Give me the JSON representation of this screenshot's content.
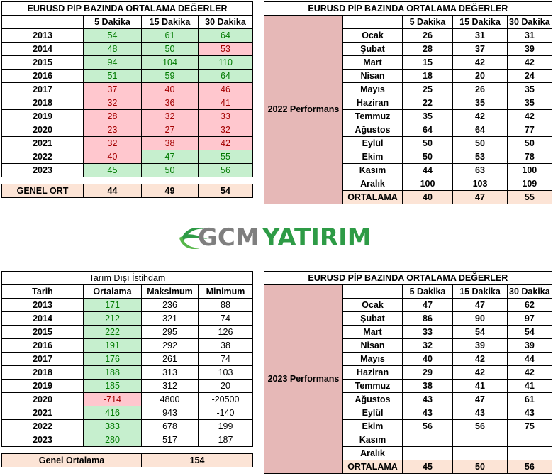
{
  "t1": {
    "title": "EURUSD  PİP BAZINDA ORTALAMA DEĞERLER",
    "cols": [
      "5 Dakika",
      "15 Dakika",
      "30 Dakika"
    ],
    "rows": [
      {
        "label": "2013",
        "v": [
          "54",
          "61",
          "64"
        ],
        "c": [
          "green",
          "green",
          "green"
        ]
      },
      {
        "label": "2014",
        "v": [
          "48",
          "50",
          "53"
        ],
        "c": [
          "green",
          "green",
          "red"
        ]
      },
      {
        "label": "2015",
        "v": [
          "94",
          "104",
          "110"
        ],
        "c": [
          "green",
          "green",
          "green"
        ]
      },
      {
        "label": "2016",
        "v": [
          "51",
          "59",
          "64"
        ],
        "c": [
          "green",
          "green",
          "green"
        ]
      },
      {
        "label": "2017",
        "v": [
          "37",
          "40",
          "46"
        ],
        "c": [
          "red",
          "red",
          "red"
        ]
      },
      {
        "label": "2018",
        "v": [
          "32",
          "36",
          "41"
        ],
        "c": [
          "red",
          "red",
          "red"
        ]
      },
      {
        "label": "2019",
        "v": [
          "28",
          "32",
          "33"
        ],
        "c": [
          "red",
          "red",
          "red"
        ]
      },
      {
        "label": "2020",
        "v": [
          "23",
          "27",
          "32"
        ],
        "c": [
          "red",
          "red",
          "red"
        ]
      },
      {
        "label": "2021",
        "v": [
          "32",
          "38",
          "42"
        ],
        "c": [
          "red",
          "red",
          "red"
        ]
      },
      {
        "label": "2022",
        "v": [
          "40",
          "47",
          "55"
        ],
        "c": [
          "red",
          "green",
          "green"
        ]
      },
      {
        "label": "2023",
        "v": [
          "45",
          "50",
          "56"
        ],
        "c": [
          "green",
          "green",
          "green"
        ]
      }
    ],
    "footer": {
      "label": "GENEL ORT",
      "v": [
        "44",
        "49",
        "54"
      ]
    }
  },
  "t2": {
    "title": "EURUSD  PİP BAZINDA ORTALAMA DEĞERLER",
    "cols": [
      "5 Dakika",
      "15 Dakika",
      "30 Dakika"
    ],
    "side": "2022 Performans",
    "rows": [
      {
        "label": "Ocak",
        "v": [
          "26",
          "31",
          "31"
        ]
      },
      {
        "label": "Şubat",
        "v": [
          "28",
          "37",
          "39"
        ]
      },
      {
        "label": "Mart",
        "v": [
          "15",
          "42",
          "42"
        ]
      },
      {
        "label": "Nisan",
        "v": [
          "18",
          "20",
          "24"
        ]
      },
      {
        "label": "Mayıs",
        "v": [
          "25",
          "26",
          "35"
        ]
      },
      {
        "label": "Haziran",
        "v": [
          "22",
          "35",
          "35"
        ]
      },
      {
        "label": "Temmuz",
        "v": [
          "35",
          "42",
          "42"
        ]
      },
      {
        "label": "Ağustos",
        "v": [
          "64",
          "64",
          "77"
        ]
      },
      {
        "label": "Eylül",
        "v": [
          "50",
          "50",
          "50"
        ]
      },
      {
        "label": "Ekim",
        "v": [
          "50",
          "53",
          "78"
        ]
      },
      {
        "label": "Kasım",
        "v": [
          "44",
          "63",
          "100"
        ]
      },
      {
        "label": "Aralık",
        "v": [
          "100",
          "103",
          "109"
        ]
      }
    ],
    "footer": {
      "label": "ORTALAMA",
      "v": [
        "40",
        "47",
        "55"
      ]
    }
  },
  "t3": {
    "title": "Tarım Dışı İstihdam",
    "cols": [
      "Tarih",
      "Ortalama",
      "Maksimum",
      "Minimum"
    ],
    "rows": [
      {
        "v": [
          "2013",
          "171",
          "236",
          "88"
        ],
        "c": "green"
      },
      {
        "v": [
          "2014",
          "212",
          "321",
          "74"
        ],
        "c": "green"
      },
      {
        "v": [
          "2015",
          "222",
          "295",
          "126"
        ],
        "c": "green"
      },
      {
        "v": [
          "2016",
          "191",
          "292",
          "38"
        ],
        "c": "green"
      },
      {
        "v": [
          "2017",
          "176",
          "261",
          "74"
        ],
        "c": "green"
      },
      {
        "v": [
          "2018",
          "188",
          "313",
          "103"
        ],
        "c": "green"
      },
      {
        "v": [
          "2019",
          "185",
          "312",
          "20"
        ],
        "c": "green"
      },
      {
        "v": [
          "2020",
          "-714",
          "4800",
          "-20500"
        ],
        "c": "red"
      },
      {
        "v": [
          "2021",
          "416",
          "943",
          "-140"
        ],
        "c": "green"
      },
      {
        "v": [
          "2022",
          "383",
          "678",
          "199"
        ],
        "c": "green"
      },
      {
        "v": [
          "2023",
          "280",
          "517",
          "187"
        ],
        "c": "green"
      }
    ],
    "footer": {
      "label": "Genel Ortalama",
      "value": "154"
    }
  },
  "t4": {
    "title": "EURUSD  PİP BAZINDA ORTALAMA DEĞERLER",
    "cols": [
      "5 Dakika",
      "15 Dakika",
      "30 Dakika"
    ],
    "side": "2023 Performans",
    "rows": [
      {
        "label": "Ocak",
        "v": [
          "47",
          "47",
          "62"
        ]
      },
      {
        "label": "Şubat",
        "v": [
          "86",
          "90",
          "97"
        ]
      },
      {
        "label": "Mart",
        "v": [
          "33",
          "54",
          "54"
        ]
      },
      {
        "label": "Nisan",
        "v": [
          "32",
          "39",
          "39"
        ]
      },
      {
        "label": "Mayıs",
        "v": [
          "40",
          "42",
          "44"
        ]
      },
      {
        "label": "Haziran",
        "v": [
          "29",
          "42",
          "42"
        ]
      },
      {
        "label": "Temmuz",
        "v": [
          "38",
          "41",
          "41"
        ]
      },
      {
        "label": "Ağustos",
        "v": [
          "43",
          "47",
          "61"
        ]
      },
      {
        "label": "Eylül",
        "v": [
          "43",
          "43",
          "43"
        ]
      },
      {
        "label": "Ekim",
        "v": [
          "56",
          "56",
          "75"
        ]
      },
      {
        "label": "Kasım",
        "v": [
          "",
          "",
          ""
        ]
      },
      {
        "label": "Aralık",
        "v": [
          "",
          "",
          ""
        ]
      }
    ],
    "footer": {
      "label": "ORTALAMA",
      "v": [
        "45",
        "50",
        "56"
      ]
    }
  },
  "logo": {
    "part1": "GCM",
    "part2": "YATIRIM",
    "icon": "globe-swoosh-icon",
    "color_gray": "#7f7f7f",
    "color_green": "#2e9b46"
  },
  "colors": {
    "green_fill": "#c6efce",
    "green_text": "#007a00",
    "red_fill": "#ffc7ce",
    "red_text": "#a30000",
    "peach": "#fce4d6",
    "mauve": "#e6b8b7"
  }
}
